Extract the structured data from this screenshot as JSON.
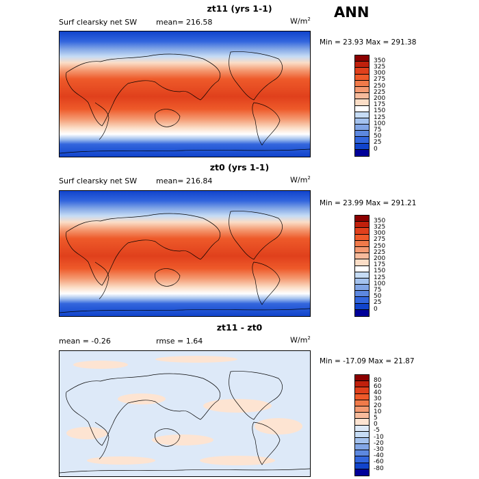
{
  "season": "ANN",
  "panels": [
    {
      "title": "zt11 (yrs 1-1)",
      "variable": "Surf clearsky net SW",
      "mean_label": "mean=",
      "mean_value": "216.58",
      "unit_base": "W/m",
      "unit_exp": "2",
      "minmax": "Min =  23.93 Max = 291.38",
      "colorbar": {
        "labels": [
          "350",
          "325",
          "300",
          "275",
          "250",
          "225",
          "200",
          "175",
          "150",
          "125",
          "100",
          "75",
          "50",
          "25",
          "0"
        ],
        "colors": [
          "#8b0000",
          "#c0200c",
          "#e0401c",
          "#ee5a2a",
          "#f07a4a",
          "#f49a72",
          "#f7bb9c",
          "#fbddc6",
          "#ffffff",
          "#c6dcf5",
          "#a4c2ee",
          "#82a6e6",
          "#5d88df",
          "#3366dd",
          "#1144cc",
          "#000099"
        ]
      }
    },
    {
      "title": "zt0 (yrs 1-1)",
      "variable": "Surf clearsky net SW",
      "mean_label": "mean=",
      "mean_value": "216.84",
      "unit_base": "W/m",
      "unit_exp": "2",
      "minmax": "Min =  23.99 Max = 291.21",
      "colorbar": {
        "labels": [
          "350",
          "325",
          "300",
          "275",
          "250",
          "225",
          "200",
          "175",
          "150",
          "125",
          "100",
          "75",
          "50",
          "25",
          "0"
        ],
        "colors": [
          "#8b0000",
          "#c0200c",
          "#e0401c",
          "#ee5a2a",
          "#f07a4a",
          "#f49a72",
          "#f7bb9c",
          "#fbddc6",
          "#ffffff",
          "#c6dcf5",
          "#a4c2ee",
          "#82a6e6",
          "#5d88df",
          "#3366dd",
          "#1144cc",
          "#000099"
        ]
      }
    },
    {
      "title": "zt11 - zt0",
      "mean_label": "mean =",
      "mean_value": "-0.26",
      "rmse_label": "rmse =",
      "rmse_value": "1.64",
      "unit_base": "W/m",
      "unit_exp": "2",
      "minmax": "Min = -17.09 Max =  21.87",
      "colorbar": {
        "labels": [
          "80",
          "60",
          "40",
          "30",
          "20",
          "10",
          "5",
          "0",
          "-5",
          "-10",
          "-20",
          "-30",
          "-40",
          "-60",
          "-80"
        ],
        "colors": [
          "#8b0000",
          "#c0200c",
          "#e0401c",
          "#ee5a2a",
          "#f07a4a",
          "#f49a72",
          "#f7bb9c",
          "#fde4d2",
          "#dde9f8",
          "#c6dcf5",
          "#a4c2ee",
          "#82a6e6",
          "#5d88df",
          "#3366dd",
          "#1144cc",
          "#000099"
        ]
      }
    }
  ]
}
